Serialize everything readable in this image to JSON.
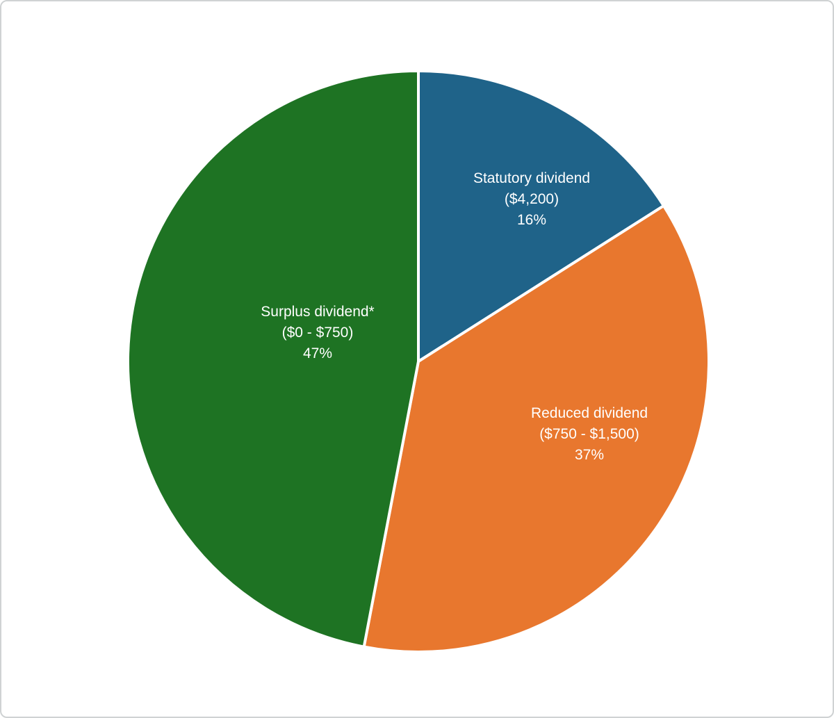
{
  "chart_data": {
    "type": "pie",
    "title": "",
    "direction": "clockwise",
    "start_angle_deg": 0,
    "legend_position": "none",
    "label_text_color": "#ffffff",
    "slice_separator_color": "#ffffff",
    "slices": [
      {
        "label": "Statutory dividend",
        "amount": "($4,200)",
        "percent_label": "16%",
        "value": 16,
        "color": "#1f6389"
      },
      {
        "label": "Reduced dividend",
        "amount": "($750 - $1,500)",
        "percent_label": "37%",
        "value": 37,
        "color": "#e8772e"
      },
      {
        "label": "Surplus dividend*",
        "amount": "($0 - $750)",
        "percent_label": "47%",
        "value": 47,
        "color": "#1e7323"
      }
    ],
    "labels_layout": [
      {
        "angle_deg": 35,
        "radius_frac": 0.68
      },
      {
        "angle_deg": 113,
        "radius_frac": 0.64
      },
      {
        "angle_deg": 286,
        "radius_frac": 0.36
      }
    ]
  },
  "frame": {
    "background": "#ffffff",
    "border_color": "#cfd2d3"
  }
}
